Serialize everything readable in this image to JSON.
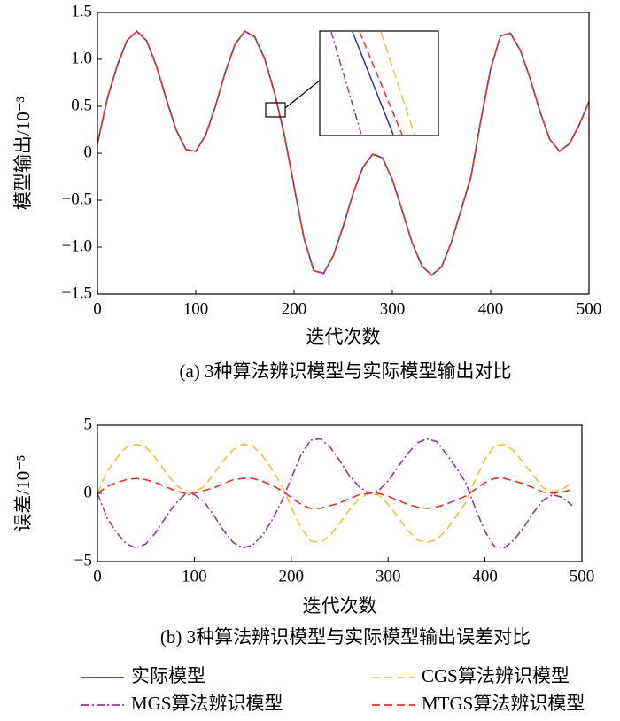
{
  "chart_data": [
    {
      "type": "line",
      "title": "(a) 3种算法辨识模型与实际模型输出对比",
      "xlabel": "迭代次数",
      "ylabel": "模型输出/10⁻³",
      "x": [
        0,
        10,
        20,
        30,
        40,
        50,
        60,
        70,
        80,
        90,
        100,
        110,
        120,
        130,
        140,
        150,
        160,
        170,
        180,
        190,
        200,
        210,
        220,
        230,
        240,
        250,
        260,
        270,
        280,
        290,
        300,
        310,
        320,
        330,
        340,
        350,
        360,
        370,
        380,
        390,
        400,
        410,
        420,
        430,
        440,
        450,
        460,
        470,
        480,
        490,
        500
      ],
      "series": [
        {
          "name": "实际模型",
          "color": "#2b3990",
          "dash": "solid",
          "values": [
            0.1,
            0.58,
            0.93,
            1.2,
            1.3,
            1.2,
            0.93,
            0.58,
            0.25,
            0.04,
            0.02,
            0.19,
            0.5,
            0.86,
            1.16,
            1.3,
            1.24,
            1.01,
            0.65,
            0.2,
            -0.35,
            -0.9,
            -1.25,
            -1.28,
            -1.09,
            -0.78,
            -0.43,
            -0.15,
            -0.01,
            -0.05,
            -0.28,
            -0.61,
            -0.95,
            -1.2,
            -1.3,
            -1.21,
            -0.95,
            -0.6,
            -0.25,
            0.35,
            0.9,
            1.25,
            1.28,
            1.1,
            0.8,
            0.45,
            0.15,
            0.02,
            0.1,
            0.3,
            0.55
          ]
        },
        {
          "name": "CGS算法辨识模型",
          "color": "#f2c040",
          "dash": "dashed",
          "values": [
            0.1,
            0.58,
            0.93,
            1.2,
            1.3,
            1.2,
            0.93,
            0.58,
            0.25,
            0.04,
            0.02,
            0.19,
            0.5,
            0.86,
            1.16,
            1.3,
            1.24,
            1.01,
            0.65,
            0.2,
            -0.35,
            -0.9,
            -1.25,
            -1.28,
            -1.09,
            -0.78,
            -0.43,
            -0.15,
            -0.01,
            -0.05,
            -0.28,
            -0.61,
            -0.95,
            -1.2,
            -1.3,
            -1.21,
            -0.95,
            -0.6,
            -0.25,
            0.35,
            0.9,
            1.25,
            1.28,
            1.1,
            0.8,
            0.45,
            0.15,
            0.02,
            0.1,
            0.3,
            0.55
          ]
        },
        {
          "name": "MGS算法辨识模型",
          "color": "#8e3b96",
          "dash": "dashdot",
          "values": [
            0.1,
            0.58,
            0.93,
            1.2,
            1.3,
            1.2,
            0.93,
            0.58,
            0.25,
            0.04,
            0.02,
            0.19,
            0.5,
            0.86,
            1.16,
            1.3,
            1.24,
            1.01,
            0.65,
            0.2,
            -0.35,
            -0.9,
            -1.25,
            -1.28,
            -1.09,
            -0.78,
            -0.43,
            -0.15,
            -0.01,
            -0.05,
            -0.28,
            -0.61,
            -0.95,
            -1.2,
            -1.3,
            -1.21,
            -0.95,
            -0.6,
            -0.25,
            0.35,
            0.9,
            1.25,
            1.28,
            1.1,
            0.8,
            0.45,
            0.15,
            0.02,
            0.1,
            0.3,
            0.55
          ]
        },
        {
          "name": "MTGS算法辨识模型",
          "color": "#e8312f",
          "dash": "dashed",
          "values": [
            0.1,
            0.58,
            0.93,
            1.2,
            1.3,
            1.2,
            0.93,
            0.58,
            0.25,
            0.04,
            0.02,
            0.19,
            0.5,
            0.86,
            1.16,
            1.3,
            1.24,
            1.01,
            0.65,
            0.2,
            -0.35,
            -0.9,
            -1.25,
            -1.28,
            -1.09,
            -0.78,
            -0.43,
            -0.15,
            -0.01,
            -0.05,
            -0.28,
            -0.61,
            -0.95,
            -1.2,
            -1.3,
            -1.21,
            -0.95,
            -0.6,
            -0.25,
            0.35,
            0.9,
            1.25,
            1.28,
            1.1,
            0.8,
            0.45,
            0.15,
            0.02,
            0.1,
            0.3,
            0.55
          ]
        }
      ],
      "xlim": [
        0,
        500
      ],
      "xticks": [
        0,
        100,
        200,
        300,
        400,
        500
      ],
      "ylim": [
        -1.5,
        1.5
      ],
      "yticks": [
        {
          "value": -1.5,
          "label": "−1.5"
        },
        {
          "value": -1,
          "label": "−1.0"
        },
        {
          "value": -0.5,
          "label": "−0.5"
        },
        0,
        0.5,
        {
          "value": 1,
          "label": "1.0"
        },
        1.5
      ],
      "legend": "bottom"
    },
    {
      "type": "line",
      "title": "(b) 3种算法辨识模型与实际模型输出误差对比",
      "xlabel": "迭代次数",
      "ylabel": "误差/10⁻⁵",
      "x": [
        0,
        10,
        20,
        30,
        40,
        50,
        60,
        70,
        80,
        90,
        100,
        110,
        120,
        130,
        140,
        150,
        160,
        170,
        180,
        190,
        200,
        210,
        220,
        230,
        240,
        250,
        260,
        270,
        280,
        290,
        300,
        310,
        320,
        330,
        340,
        350,
        360,
        370,
        380,
        390,
        400,
        410,
        420,
        430,
        440,
        450,
        460,
        470,
        480,
        490
      ],
      "series": [
        {
          "color": "#f2c040",
          "dash": "dashed",
          "values": [
            0,
            1.6,
            2.6,
            3.4,
            3.6,
            3.4,
            2.6,
            1.6,
            0.7,
            0.1,
            0.1,
            0.5,
            1.4,
            2.4,
            3.2,
            3.6,
            3.5,
            2.8,
            1.8,
            0.6,
            -1,
            -2.5,
            -3.5,
            -3.6,
            -3.1,
            -2.2,
            -1.2,
            -0.4,
            0,
            -0.1,
            -0.8,
            -1.7,
            -2.7,
            -3.4,
            -3.6,
            -3.4,
            -2.7,
            -1.7,
            -0.7,
            1,
            2.5,
            3.5,
            3.6,
            3.1,
            2.2,
            1.3,
            0.4,
            0.1,
            0.3,
            0.8
          ]
        },
        {
          "color": "#8e3b96",
          "dash": "dashdot",
          "values": [
            0,
            -1.8,
            -2.9,
            -3.7,
            -4,
            -3.7,
            -2.9,
            -1.8,
            -0.8,
            -0.1,
            -0.1,
            -0.6,
            -1.6,
            -2.7,
            -3.6,
            -4,
            -3.8,
            -3.1,
            -2,
            -0.6,
            1.1,
            2.8,
            3.9,
            4,
            3.4,
            2.4,
            1.3,
            0.5,
            0,
            0.2,
            0.9,
            1.9,
            2.9,
            3.7,
            4,
            3.8,
            2.9,
            1.9,
            0.8,
            -1.1,
            -2.8,
            -3.9,
            -4,
            -3.4,
            -2.5,
            -1.4,
            -0.5,
            -0.1,
            -0.3,
            -0.9
          ]
        },
        {
          "color": "#e8312f",
          "dash": "dashed",
          "values": [
            0,
            0.5,
            0.8,
            1,
            1.1,
            1,
            0.8,
            0.5,
            0.2,
            0,
            0,
            0.2,
            0.4,
            0.7,
            1,
            1.1,
            1.1,
            0.9,
            0.6,
            0.2,
            -0.3,
            -0.8,
            -1.1,
            -1.1,
            -0.9,
            -0.7,
            -0.4,
            -0.1,
            0,
            0,
            -0.2,
            -0.5,
            -0.8,
            -1,
            -1.1,
            -1,
            -0.8,
            -0.5,
            -0.2,
            0.3,
            0.8,
            1.1,
            1.1,
            0.9,
            0.7,
            0.4,
            0.1,
            0,
            0.1,
            0.3
          ]
        }
      ],
      "xlim": [
        0,
        500
      ],
      "xticks": [
        0,
        100,
        200,
        300,
        400,
        500
      ],
      "ylim": [
        -5,
        5
      ],
      "yticks": [
        {
          "value": -5,
          "label": "−5"
        },
        0,
        5
      ]
    }
  ]
}
